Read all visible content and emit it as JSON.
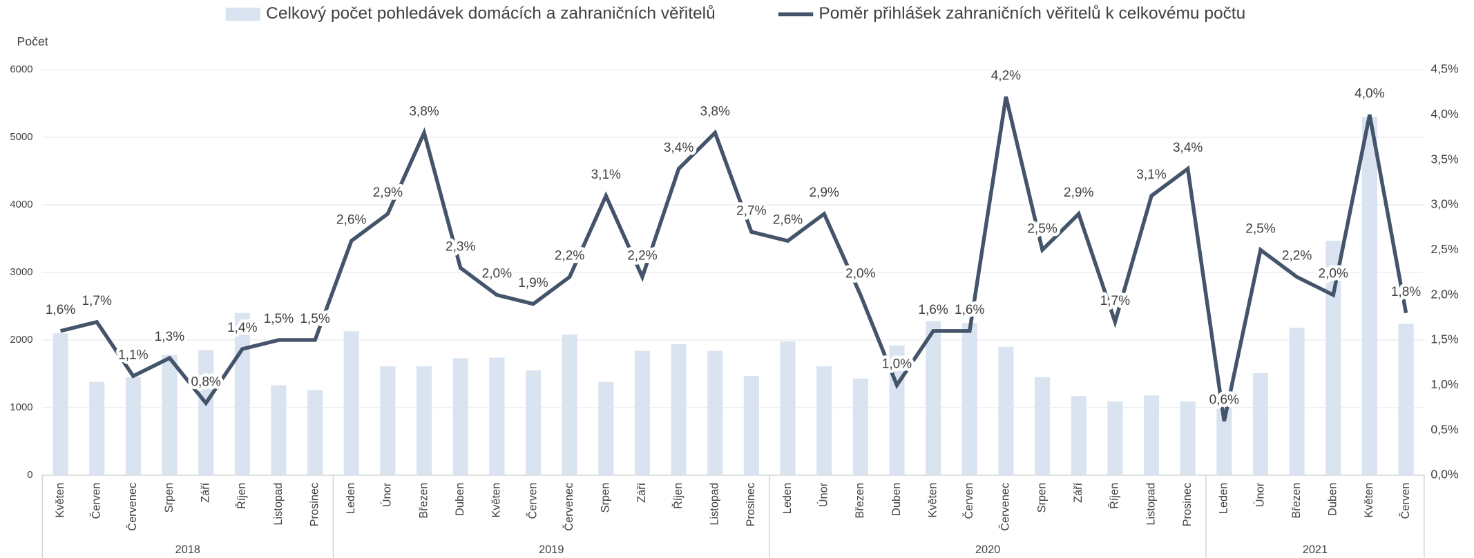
{
  "chart_data": {
    "type": "bar_line",
    "y_label": "Počet",
    "legend": "top",
    "grid": true,
    "category_groups": [
      {
        "name": "2018",
        "categories": [
          "Květen",
          "Červen",
          "Červenec",
          "Srpen",
          "Září",
          "Říjen",
          "Listopad",
          "Prosinec"
        ]
      },
      {
        "name": "2019",
        "categories": [
          "Leden",
          "Únor",
          "Březen",
          "Duben",
          "Květen",
          "Červen",
          "Červenec",
          "Srpen",
          "Září",
          "Říjen",
          "Listopad",
          "Prosinec"
        ]
      },
      {
        "name": "2020",
        "categories": [
          "Leden",
          "Únor",
          "Březen",
          "Duben",
          "Květen",
          "Červen",
          "Červenec",
          "Srpen",
          "Září",
          "Říjen",
          "Listopad",
          "Prosinec"
        ]
      },
      {
        "name": "2021",
        "categories": [
          "Leden",
          "Únor",
          "Březen",
          "Duben",
          "Květen",
          "Červen"
        ]
      }
    ],
    "ylim": [
      0,
      6000
    ],
    "yticks": [
      0,
      1000,
      2000,
      3000,
      4000,
      5000,
      6000
    ],
    "y2lim": [
      0,
      4.5
    ],
    "y2ticks": [
      {
        "value": 0,
        "label": "0,0%"
      },
      {
        "value": 0.5,
        "label": "0,5%"
      },
      {
        "value": 1,
        "label": "1,0%"
      },
      {
        "value": 1.5,
        "label": "1,5%"
      },
      {
        "value": 2,
        "label": "2,0%"
      },
      {
        "value": 2.5,
        "label": "2,5%"
      },
      {
        "value": 3,
        "label": "3,0%"
      },
      {
        "value": 3.5,
        "label": "3,5%"
      },
      {
        "value": 4,
        "label": "4,0%"
      },
      {
        "value": 4.5,
        "label": "4,5%"
      }
    ],
    "series": [
      {
        "name": "Celkový počet pohledávek domácích a zahraničních věřitelů",
        "type": "bar",
        "color": "#dae3f0",
        "values": [
          2100,
          1380,
          1450,
          1780,
          1850,
          2400,
          1330,
          1260,
          2130,
          1610,
          1610,
          1730,
          1740,
          1550,
          2080,
          1380,
          1840,
          1940,
          1840,
          1470,
          1980,
          1610,
          1430,
          1920,
          2280,
          2250,
          1900,
          1450,
          1170,
          1090,
          1180,
          1090,
          1000,
          1510,
          2180,
          3470,
          5300,
          2240
        ]
      },
      {
        "name": "Poměr přihlášek zahraničních věřitelů k celkovému počtu",
        "type": "line",
        "axis": "y2",
        "color": "#44546a",
        "values": [
          1.6,
          1.7,
          1.1,
          1.3,
          0.8,
          1.4,
          1.5,
          1.5,
          2.6,
          2.9,
          3.8,
          2.3,
          2.0,
          1.9,
          2.2,
          3.1,
          2.2,
          3.4,
          3.8,
          2.7,
          2.6,
          2.9,
          2.0,
          1.0,
          1.6,
          1.6,
          4.2,
          2.5,
          2.9,
          1.7,
          3.1,
          3.4,
          0.6,
          2.5,
          2.2,
          2.0,
          4.0,
          1.8
        ],
        "value_labels": [
          "1,6%",
          "1,7%",
          "1,1%",
          "1,3%",
          "0,8%",
          "1,4%",
          "1,5%",
          "1,5%",
          "2,6%",
          "2,9%",
          "3,8%",
          "2,3%",
          "2,0%",
          "1,9%",
          "2,2%",
          "3,1%",
          "2,2%",
          "3,4%",
          "3,8%",
          "2,7%",
          "2,6%",
          "2,9%",
          "2,0%",
          "1,0%",
          "1,6%",
          "1,6%",
          "4,2%",
          "2,5%",
          "2,9%",
          "1,7%",
          "3,1%",
          "3,4%",
          "0,6%",
          "2,5%",
          "2,2%",
          "2,0%",
          "4,0%",
          "1,8%"
        ]
      }
    ]
  }
}
